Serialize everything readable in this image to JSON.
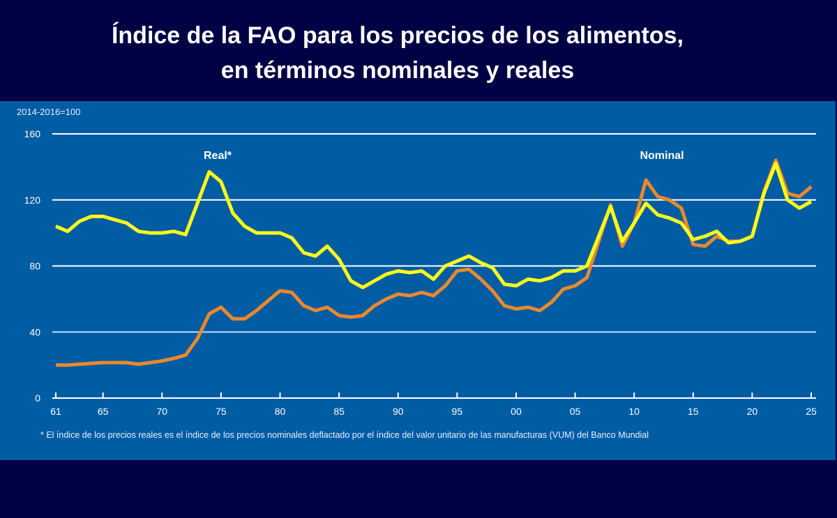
{
  "title_line1": "Índice de la FAO para los precios de los alimentos,",
  "title_line2": "en términos nominales y reales",
  "footnote": "* El índice de los precios reales es el índice de los precios nominales deflactado por el índice del valor unitario de las manufacturas (VUM) del Banco Mundial",
  "colors": {
    "background": "#000045",
    "panel": "#005ca3",
    "real": "#ffff1a",
    "nominal": "#e8892e"
  },
  "chart_data": {
    "type": "line",
    "ylabel": "2014-2016=100",
    "ylim": [
      0,
      160
    ],
    "yticks": [
      0,
      40,
      80,
      120,
      160
    ],
    "xlim": [
      1961,
      2025
    ],
    "xticks": [
      1961,
      1965,
      1970,
      1975,
      1980,
      1985,
      1990,
      1995,
      2000,
      2005,
      2010,
      2015,
      2020,
      2025
    ],
    "xtick_labels": [
      "61",
      "65",
      "70",
      "75",
      "80",
      "85",
      "90",
      "95",
      "00",
      "05",
      "10",
      "15",
      "20",
      "25"
    ],
    "grid": "horizontal",
    "x_start": 1961,
    "series": [
      {
        "name": "Nominal",
        "color": "#e8892e",
        "values": [
          20,
          20,
          20.5,
          21,
          21.5,
          21.5,
          21.5,
          20.5,
          21.5,
          22.5,
          24,
          26,
          36,
          51,
          55,
          48,
          48,
          53,
          59,
          65,
          64,
          56,
          53,
          55,
          50,
          49,
          50,
          56,
          60,
          63,
          62,
          64,
          62,
          68,
          77,
          78,
          72,
          65,
          56,
          54,
          55,
          53,
          58,
          66,
          68,
          73,
          95,
          117,
          92,
          106,
          132,
          122,
          120,
          115,
          93,
          92,
          98,
          95,
          95,
          98,
          125,
          144,
          124,
          122,
          128
        ]
      },
      {
        "name": "Real*",
        "color": "#ffff1a",
        "values": [
          104,
          101,
          107,
          110,
          110,
          108,
          106,
          101,
          100,
          100,
          101,
          99,
          118,
          137,
          131,
          112,
          104,
          100,
          100,
          100,
          97,
          88,
          86,
          92,
          84,
          71,
          67,
          71,
          75,
          77,
          76,
          77,
          72,
          80,
          83,
          86,
          82,
          79,
          69,
          68,
          72,
          71,
          73,
          77,
          77,
          80,
          98,
          116,
          95,
          106,
          118,
          111,
          109,
          106,
          96,
          98,
          101,
          94,
          95,
          98,
          124,
          142,
          120,
          115,
          119
        ]
      }
    ]
  }
}
